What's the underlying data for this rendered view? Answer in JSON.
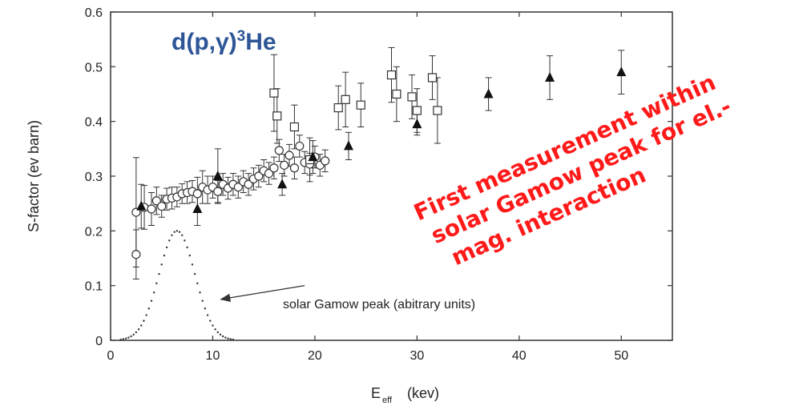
{
  "chart_data": {
    "type": "scatter",
    "title": "",
    "reaction_label": {
      "pre": "d(p,",
      "gamma": "γ",
      "post": ")",
      "sup": "3",
      "tail": "He"
    },
    "xlabel": {
      "main": "E",
      "sub": "eff",
      "unit": "(kev)"
    },
    "ylabel": "S-factor (ev barn)",
    "xlim": [
      0,
      55
    ],
    "ylim": [
      0,
      0.6
    ],
    "x_ticks": [
      "0",
      "10",
      "20",
      "30",
      "40",
      "50"
    ],
    "x_tick_values": [
      0,
      10,
      20,
      30,
      40,
      50
    ],
    "y_ticks": [
      "0",
      "0.1",
      "0.2",
      "0.3",
      "0.4",
      "0.5",
      "0.6"
    ],
    "y_tick_values": [
      0,
      0.1,
      0.2,
      0.3,
      0.4,
      0.5,
      0.6
    ],
    "grid": false,
    "series": [
      {
        "marker": "circle",
        "points": [
          {
            "x": 2.5,
            "y": 0.157,
            "err": 0.045
          },
          {
            "x": 2.5,
            "y": 0.234,
            "err": 0.1
          },
          {
            "x": 3.3,
            "y": 0.243,
            "err": 0.04
          },
          {
            "x": 4.0,
            "y": 0.24,
            "err": 0.03
          },
          {
            "x": 4.5,
            "y": 0.255,
            "err": 0.025
          },
          {
            "x": 5.0,
            "y": 0.245,
            "err": 0.02
          },
          {
            "x": 5.5,
            "y": 0.258,
            "err": 0.02
          },
          {
            "x": 6.0,
            "y": 0.26,
            "err": 0.02
          },
          {
            "x": 6.5,
            "y": 0.262,
            "err": 0.018
          },
          {
            "x": 7.0,
            "y": 0.268,
            "err": 0.018
          },
          {
            "x": 7.5,
            "y": 0.27,
            "err": 0.02
          },
          {
            "x": 8.0,
            "y": 0.272,
            "err": 0.02
          },
          {
            "x": 8.5,
            "y": 0.268,
            "err": 0.03
          },
          {
            "x": 9.0,
            "y": 0.28,
            "err": 0.03
          },
          {
            "x": 9.5,
            "y": 0.275,
            "err": 0.025
          },
          {
            "x": 10.0,
            "y": 0.28,
            "err": 0.02
          },
          {
            "x": 10.5,
            "y": 0.272,
            "err": 0.02
          },
          {
            "x": 11.0,
            "y": 0.285,
            "err": 0.02
          },
          {
            "x": 11.5,
            "y": 0.278,
            "err": 0.02
          },
          {
            "x": 12.0,
            "y": 0.285,
            "err": 0.02
          },
          {
            "x": 12.5,
            "y": 0.28,
            "err": 0.02
          },
          {
            "x": 13.0,
            "y": 0.29,
            "err": 0.02
          },
          {
            "x": 13.5,
            "y": 0.285,
            "err": 0.02
          },
          {
            "x": 14.0,
            "y": 0.295,
            "err": 0.02
          },
          {
            "x": 14.5,
            "y": 0.3,
            "err": 0.02
          },
          {
            "x": 15.0,
            "y": 0.31,
            "err": 0.02
          },
          {
            "x": 15.5,
            "y": 0.305,
            "err": 0.02
          },
          {
            "x": 16.0,
            "y": 0.315,
            "err": 0.02
          },
          {
            "x": 16.5,
            "y": 0.347,
            "err": 0.02
          },
          {
            "x": 17.0,
            "y": 0.32,
            "err": 0.02
          },
          {
            "x": 17.5,
            "y": 0.338,
            "err": 0.02
          },
          {
            "x": 18.0,
            "y": 0.315,
            "err": 0.02
          },
          {
            "x": 18.5,
            "y": 0.355,
            "err": 0.02
          },
          {
            "x": 19.0,
            "y": 0.325,
            "err": 0.02
          },
          {
            "x": 19.5,
            "y": 0.322,
            "err": 0.02
          },
          {
            "x": 20.0,
            "y": 0.335,
            "err": 0.02
          },
          {
            "x": 20.5,
            "y": 0.32,
            "err": 0.02
          },
          {
            "x": 21.0,
            "y": 0.328,
            "err": 0.02
          }
        ]
      },
      {
        "marker": "square",
        "points": [
          {
            "x": 16.0,
            "y": 0.452,
            "err": 0.07
          },
          {
            "x": 16.3,
            "y": 0.41,
            "err": 0.05
          },
          {
            "x": 18.0,
            "y": 0.39,
            "err": 0.04
          },
          {
            "x": 19.5,
            "y": 0.33,
            "err": 0.04
          },
          {
            "x": 22.3,
            "y": 0.425,
            "err": 0.04
          },
          {
            "x": 23.0,
            "y": 0.44,
            "err": 0.05
          },
          {
            "x": 24.5,
            "y": 0.43,
            "err": 0.04
          },
          {
            "x": 27.5,
            "y": 0.485,
            "err": 0.05
          },
          {
            "x": 28.0,
            "y": 0.45,
            "err": 0.05
          },
          {
            "x": 29.5,
            "y": 0.445,
            "err": 0.04
          },
          {
            "x": 30.0,
            "y": 0.42,
            "err": 0.04
          },
          {
            "x": 31.5,
            "y": 0.48,
            "err": 0.04
          },
          {
            "x": 32.0,
            "y": 0.42,
            "err": 0.06
          }
        ]
      },
      {
        "marker": "triangle",
        "points": [
          {
            "x": 3.0,
            "y": 0.245,
            "err": 0.04
          },
          {
            "x": 8.5,
            "y": 0.24,
            "err": 0.03
          },
          {
            "x": 10.5,
            "y": 0.3,
            "err": 0.05
          },
          {
            "x": 16.8,
            "y": 0.285,
            "err": 0.02
          },
          {
            "x": 19.8,
            "y": 0.335,
            "err": 0.03
          },
          {
            "x": 23.3,
            "y": 0.355,
            "err": 0.025
          },
          {
            "x": 30.0,
            "y": 0.395,
            "err": 0.02
          },
          {
            "x": 37.0,
            "y": 0.45,
            "err": 0.03
          },
          {
            "x": 43.0,
            "y": 0.48,
            "err": 0.04
          },
          {
            "x": 50.0,
            "y": 0.49,
            "err": 0.04
          }
        ]
      }
    ],
    "gamow_peak": {
      "center": 6.5,
      "peak": 0.2,
      "sigma": 1.75,
      "x_start": 1.0,
      "x_end": 12.0,
      "step": 0.25
    },
    "annotations": {
      "gamow_label": "solar Gamow peak (abitrary units)",
      "gamow_arrow": {
        "from": [
          19.0,
          0.1
        ],
        "to": [
          10.8,
          0.075
        ]
      },
      "callout_lines": [
        "First measurement within",
        "solar Gamow peak for el.-",
        "mag. interaction"
      ],
      "callout_color": "#ff1a1a",
      "reaction_label_color": "#2e5597"
    }
  }
}
